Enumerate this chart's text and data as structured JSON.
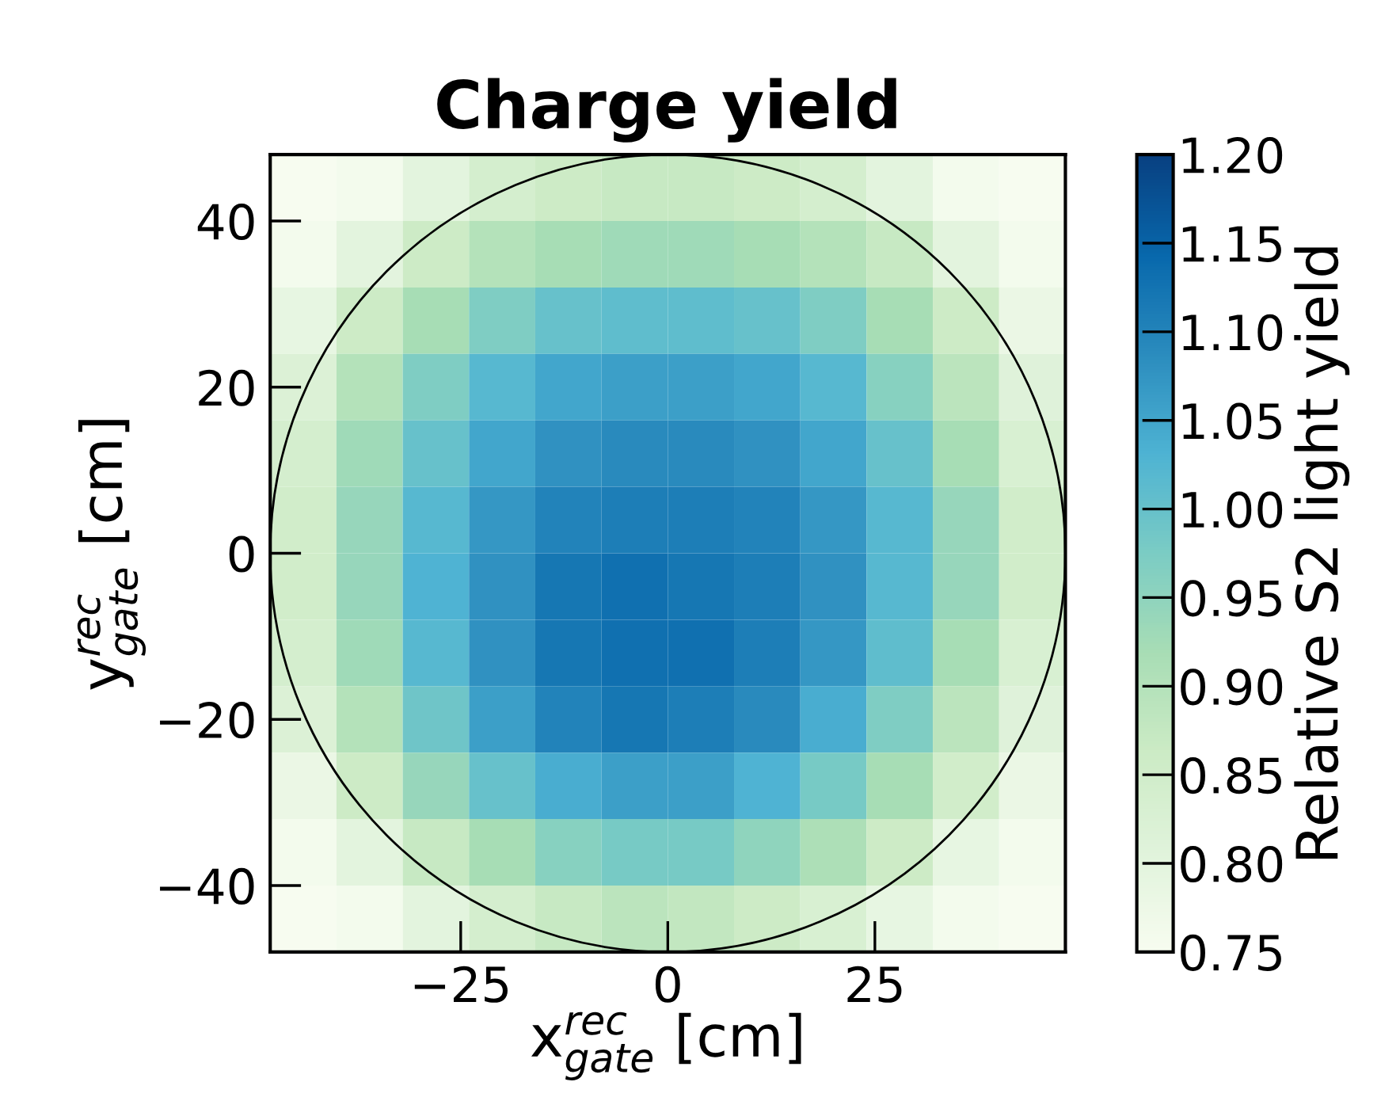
{
  "chart_data": {
    "type": "heatmap",
    "title": "Charge yield",
    "xlabel": "x$^{rec}$$_{gate}$ [cm]",
    "ylabel": "y$^{rec}$$_{gate}$ [cm]",
    "clabel": "Relative S2 light yield",
    "x": [
      -44,
      -36,
      -28,
      -20,
      -12,
      -4,
      4,
      12,
      20,
      28,
      36,
      44
    ],
    "y": [
      44,
      36,
      28,
      20,
      12,
      4,
      -4,
      -12,
      -20,
      -28,
      -36,
      -44
    ],
    "cells": [
      [
        0.75,
        0.76,
        0.8,
        0.84,
        0.86,
        0.87,
        0.87,
        0.86,
        0.84,
        0.8,
        0.76,
        0.75
      ],
      [
        0.76,
        0.8,
        0.86,
        0.9,
        0.92,
        0.93,
        0.93,
        0.92,
        0.9,
        0.87,
        0.8,
        0.76
      ],
      [
        0.79,
        0.86,
        0.92,
        0.97,
        1.0,
        1.01,
        1.01,
        1.0,
        0.97,
        0.92,
        0.86,
        0.78
      ],
      [
        0.82,
        0.9,
        0.97,
        1.02,
        1.05,
        1.06,
        1.06,
        1.05,
        1.02,
        0.96,
        0.89,
        0.81
      ],
      [
        0.84,
        0.93,
        1.0,
        1.05,
        1.08,
        1.09,
        1.09,
        1.08,
        1.05,
        1.0,
        0.92,
        0.83
      ],
      [
        0.85,
        0.94,
        1.02,
        1.07,
        1.1,
        1.11,
        1.11,
        1.1,
        1.07,
        1.02,
        0.94,
        0.85
      ],
      [
        0.85,
        0.94,
        1.03,
        1.08,
        1.12,
        1.13,
        1.12,
        1.11,
        1.08,
        1.02,
        0.94,
        0.85
      ],
      [
        0.84,
        0.93,
        1.02,
        1.08,
        1.12,
        1.13,
        1.13,
        1.11,
        1.07,
        1.01,
        0.92,
        0.83
      ],
      [
        0.82,
        0.9,
        0.99,
        1.06,
        1.1,
        1.12,
        1.11,
        1.09,
        1.04,
        0.97,
        0.89,
        0.81
      ],
      [
        0.78,
        0.86,
        0.94,
        1.0,
        1.04,
        1.06,
        1.06,
        1.03,
        0.98,
        0.92,
        0.85,
        0.78
      ],
      [
        0.76,
        0.8,
        0.87,
        0.92,
        0.96,
        0.98,
        0.98,
        0.95,
        0.91,
        0.86,
        0.79,
        0.76
      ],
      [
        0.75,
        0.76,
        0.8,
        0.84,
        0.87,
        0.89,
        0.88,
        0.86,
        0.83,
        0.79,
        0.76,
        0.75
      ]
    ],
    "xlim": [
      -48,
      48
    ],
    "ylim": [
      -48,
      48
    ],
    "xticks": [
      -25,
      0,
      25
    ],
    "yticks": [
      -40,
      -20,
      0,
      20,
      40
    ],
    "clim": [
      0.75,
      1.2
    ],
    "cticks": [
      {
        "value": 0.75,
        "label": "0.75"
      },
      {
        "value": 0.8,
        "label": "0.80"
      },
      {
        "value": 0.85,
        "label": "0.85"
      },
      {
        "value": 0.9,
        "label": "0.90"
      },
      {
        "value": 0.95,
        "label": "0.95"
      },
      {
        "value": 1.0,
        "label": "1.00"
      },
      {
        "value": 1.05,
        "label": "1.05"
      },
      {
        "value": 1.1,
        "label": "1.10"
      },
      {
        "value": 1.15,
        "label": "1.15"
      },
      {
        "value": 1.2,
        "label": "1.20"
      }
    ],
    "grid": false
  }
}
